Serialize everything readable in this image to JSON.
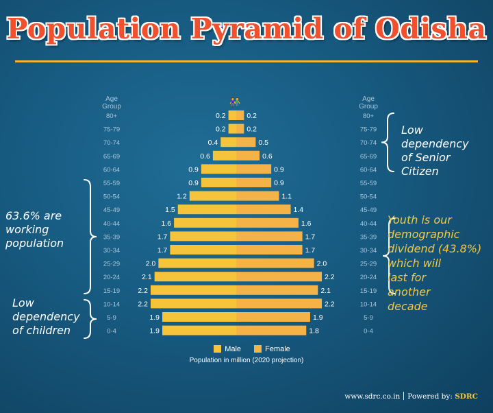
{
  "title": "Population Pyramid of Odisha",
  "axis_header": {
    "left": "Age\nGroup",
    "right": "Age\nGroup"
  },
  "couple_icon": "couple-icon",
  "annotations": {
    "senior": "Low\ndependency\nof Senior\nCitizen",
    "working": "63.6% are\nworking\npopulation",
    "children": "Low\ndependency\nof children",
    "youth": "Youth is our\ndemographic\ndividend (43.8%)\nwhich will\nlast for\nanother\ndecade"
  },
  "legend": {
    "male": "Male",
    "female": "Female"
  },
  "caption": "Population in million (2020 projection)",
  "footer": {
    "site": "www.sdrc.co.in",
    "powered": "Powered by:",
    "brand": "SDRC"
  },
  "colors": {
    "male": "#f5c43a",
    "female": "#f5b347",
    "age_label": "#a9c6dc",
    "value_label": "#ffffff",
    "bracket": "#ffffff"
  },
  "chart_data": {
    "type": "bar",
    "orientation": "horizontal-pyramid",
    "categories": [
      "80+",
      "75-79",
      "70-74",
      "65-69",
      "60-64",
      "55-59",
      "50-54",
      "45-49",
      "40-44",
      "35-39",
      "30-34",
      "25-29",
      "20-24",
      "15-19",
      "10-14",
      "5-9",
      "0-4"
    ],
    "series": [
      {
        "name": "Male",
        "values": [
          0.2,
          0.2,
          0.4,
          0.6,
          0.9,
          0.9,
          1.2,
          1.5,
          1.6,
          1.7,
          1.7,
          2.0,
          2.1,
          2.2,
          2.2,
          1.9,
          1.9
        ]
      },
      {
        "name": "Female",
        "values": [
          0.2,
          0.2,
          0.5,
          0.6,
          0.9,
          0.9,
          1.1,
          1.4,
          1.6,
          1.7,
          1.7,
          2.0,
          2.2,
          2.1,
          2.2,
          1.9,
          1.8
        ]
      }
    ],
    "value_labels": {
      "male": [
        "0.2",
        "0.2",
        "0.4",
        "0.6",
        "0.9",
        "0.9",
        "1.2",
        "1.5",
        "1.6",
        "1.7",
        "1.7",
        "2.0",
        "2.1",
        "2.2",
        "2.2",
        "1.9",
        "1.9"
      ],
      "female": [
        "0.2",
        "0.2",
        "0.5",
        "0.6",
        "0.9",
        "0.9",
        "1.1",
        "1.4",
        "1.6",
        "1.7",
        "1.7",
        "2.0",
        "2.2",
        "2.1",
        "2.2",
        "1.9",
        "1.8"
      ]
    },
    "xlim": [
      0,
      2.2
    ],
    "grid": false,
    "legend_position": "bottom-center"
  }
}
